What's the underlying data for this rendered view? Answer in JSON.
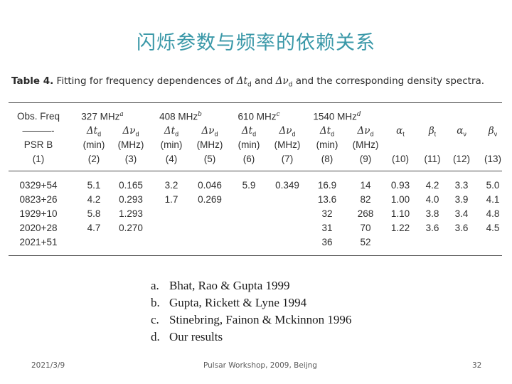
{
  "slide_title": "闪烁参数与频率的依赖关系",
  "caption": {
    "label": "Table 4.",
    "text_before_td": "Fitting for frequency dependences of",
    "td_symbol": "Δt",
    "td_sub": "d",
    "and": "and",
    "nud_symbol": "Δν",
    "nud_sub": "d",
    "text_after": "and the corresponding density spectra."
  },
  "table": {
    "header": {
      "obs_freq": "Obs. Freq",
      "dash": "———-",
      "psr": "PSR B",
      "freq_groups": [
        {
          "label": "327 MHz",
          "sup": "a"
        },
        {
          "label": "408 MHz",
          "sup": "b"
        },
        {
          "label": "610 MHz",
          "sup": "c"
        },
        {
          "label": "1540 MHz",
          "sup": "d"
        }
      ],
      "td_label": "Δt",
      "td_sub": "d",
      "nud_label": "Δν",
      "nud_sub": "d",
      "unit_min": "(min)",
      "unit_mhz": "(MHz)",
      "alpha_t": "α",
      "alpha_t_sub": "t",
      "beta_t": "β",
      "beta_t_sub": "t",
      "alpha_nu": "α",
      "alpha_nu_sub": "ν",
      "beta_nu": "β",
      "beta_nu_sub": "ν",
      "col_numbers": [
        "(1)",
        "(2)",
        "(3)",
        "(4)",
        "(5)",
        "(6)",
        "(7)",
        "(8)",
        "(9)",
        "(10)",
        "(11)",
        "(12)",
        "(13)"
      ]
    },
    "rows": [
      {
        "psr": "0329+54",
        "c2": "5.1",
        "c3": "0.165",
        "c4": "3.2",
        "c5": "0.046",
        "c6": "5.9",
        "c7": "0.349",
        "c8": "16.9",
        "c9": "14",
        "c10": "0.93",
        "c11": "4.2",
        "c12": "3.3",
        "c13": "5.0"
      },
      {
        "psr": "0823+26",
        "c2": "4.2",
        "c3": "0.293",
        "c4": "1.7",
        "c5": "0.269",
        "c6": "",
        "c7": "",
        "c8": "13.6",
        "c9": "82",
        "c10": "1.00",
        "c11": "4.0",
        "c12": "3.9",
        "c13": "4.1"
      },
      {
        "psr": "1929+10",
        "c2": "5.8",
        "c3": "1.293",
        "c4": "",
        "c5": "",
        "c6": "",
        "c7": "",
        "c8": "32",
        "c9": "268",
        "c10": "1.10",
        "c11": "3.8",
        "c12": "3.4",
        "c13": "4.8"
      },
      {
        "psr": "2020+28",
        "c2": "4.7",
        "c3": "0.270",
        "c4": "",
        "c5": "",
        "c6": "",
        "c7": "",
        "c8": "31",
        "c9": "70",
        "c10": "1.22",
        "c11": "3.6",
        "c12": "3.6",
        "c13": "4.5"
      },
      {
        "psr": "2021+51",
        "c2": "",
        "c3": "",
        "c4": "",
        "c5": "",
        "c6": "",
        "c7": "",
        "c8": "36",
        "c9": "52",
        "c10": "",
        "c11": "",
        "c12": "",
        "c13": ""
      }
    ]
  },
  "references": [
    {
      "letter": "a.",
      "text": "Bhat, Rao & Gupta 1999"
    },
    {
      "letter": "b.",
      "text": "Gupta, Rickett & Lyne 1994"
    },
    {
      "letter": "c.",
      "text": "Stinebring, Fainon & Mckinnon 1996"
    },
    {
      "letter": "d.",
      "text": "Our results"
    }
  ],
  "footer": {
    "date": "2021/3/9",
    "center": "Pulsar Workshop, 2009, Beijng",
    "page": "32"
  }
}
